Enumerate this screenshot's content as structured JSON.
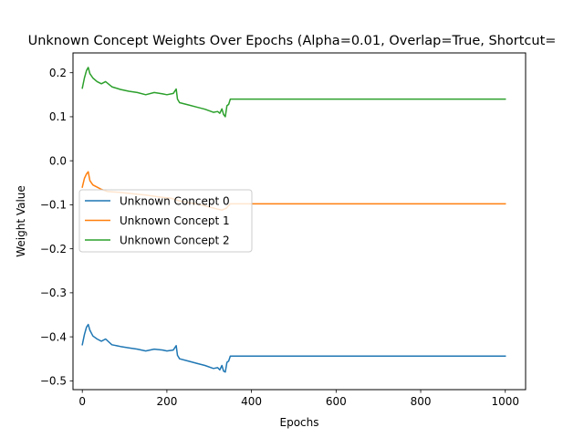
{
  "chart_data": {
    "type": "line",
    "title": "Unknown Concept Weights Over Epochs (Alpha=0.01, Overlap=True, Shortcut=",
    "xlabel": "Epochs",
    "ylabel": "Weight Value",
    "xlim": [
      -22,
      1048
    ],
    "ylim": [
      -0.52,
      0.245
    ],
    "xticks": [
      0,
      200,
      400,
      600,
      800,
      1000
    ],
    "xtick_labels": [
      "0",
      "200",
      "400",
      "600",
      "800",
      "1000"
    ],
    "yticks": [
      -0.5,
      -0.4,
      -0.3,
      -0.2,
      -0.1,
      0.0,
      0.1,
      0.2
    ],
    "ytick_labels": [
      "−0.5",
      "−0.4",
      "−0.3",
      "−0.2",
      "−0.1",
      "0.0",
      "0.1",
      "0.2"
    ],
    "grid": false,
    "legend_position": "center-left",
    "series": [
      {
        "name": "Unknown Concept 0",
        "color": "#1f77b4",
        "x": [
          0,
          5,
          10,
          14,
          18,
          25,
          35,
          45,
          55,
          70,
          90,
          110,
          130,
          150,
          170,
          190,
          200,
          215,
          222,
          225,
          230,
          250,
          270,
          290,
          310,
          320,
          325,
          330,
          334,
          338,
          342,
          346,
          350,
          360,
          400,
          600,
          800,
          1000
        ],
        "y": [
          -0.418,
          -0.395,
          -0.378,
          -0.372,
          -0.385,
          -0.398,
          -0.405,
          -0.41,
          -0.405,
          -0.418,
          -0.422,
          -0.425,
          -0.428,
          -0.432,
          -0.428,
          -0.43,
          -0.432,
          -0.43,
          -0.42,
          -0.442,
          -0.45,
          -0.455,
          -0.46,
          -0.465,
          -0.472,
          -0.47,
          -0.475,
          -0.465,
          -0.478,
          -0.48,
          -0.458,
          -0.455,
          -0.444,
          -0.444,
          -0.444,
          -0.444,
          -0.444,
          -0.444
        ]
      },
      {
        "name": "Unknown Concept 1",
        "color": "#ff7f0e",
        "x": [
          0,
          5,
          10,
          14,
          18,
          25,
          35,
          45,
          60,
          90,
          120,
          150,
          180,
          210,
          225,
          250,
          280,
          300,
          320,
          330,
          340,
          350,
          400,
          600,
          800,
          1000
        ],
        "y": [
          -0.06,
          -0.04,
          -0.03,
          -0.025,
          -0.045,
          -0.055,
          -0.06,
          -0.065,
          -0.07,
          -0.072,
          -0.075,
          -0.078,
          -0.082,
          -0.085,
          -0.09,
          -0.095,
          -0.1,
          -0.105,
          -0.11,
          -0.112,
          -0.108,
          -0.098,
          -0.098,
          -0.098,
          -0.098,
          -0.098
        ]
      },
      {
        "name": "Unknown Concept 2",
        "color": "#2ca02c",
        "x": [
          0,
          5,
          10,
          14,
          18,
          25,
          35,
          45,
          55,
          70,
          90,
          110,
          130,
          150,
          170,
          190,
          200,
          215,
          222,
          225,
          230,
          250,
          270,
          290,
          310,
          320,
          325,
          330,
          334,
          338,
          342,
          346,
          350,
          360,
          400,
          600,
          800,
          1000
        ],
        "y": [
          0.165,
          0.188,
          0.205,
          0.212,
          0.198,
          0.188,
          0.18,
          0.175,
          0.18,
          0.168,
          0.162,
          0.158,
          0.155,
          0.15,
          0.155,
          0.152,
          0.15,
          0.153,
          0.163,
          0.14,
          0.132,
          0.127,
          0.122,
          0.117,
          0.11,
          0.112,
          0.108,
          0.118,
          0.105,
          0.1,
          0.125,
          0.128,
          0.14,
          0.14,
          0.14,
          0.14,
          0.14,
          0.14
        ]
      }
    ]
  }
}
